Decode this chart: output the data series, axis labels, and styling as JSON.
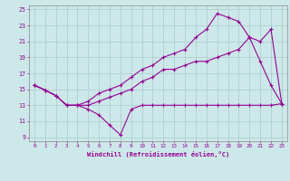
{
  "xlabel": "Windchill (Refroidissement éolien,°C)",
  "background_color": "#cce8e8",
  "line_color": "#990099",
  "grid_color": "#aacccc",
  "spine_color": "#888888",
  "xlim": [
    -0.5,
    23.5
  ],
  "ylim": [
    8.5,
    25.5
  ],
  "yticks": [
    9,
    11,
    13,
    15,
    17,
    19,
    21,
    23,
    25
  ],
  "xticks": [
    0,
    1,
    2,
    3,
    4,
    5,
    6,
    7,
    8,
    9,
    10,
    11,
    12,
    13,
    14,
    15,
    16,
    17,
    18,
    19,
    20,
    21,
    22,
    23
  ],
  "line1_x": [
    0,
    1,
    2,
    3,
    4,
    5,
    6,
    7,
    8,
    9,
    10,
    11,
    12,
    13,
    14,
    15,
    16,
    17,
    18,
    19,
    20,
    21,
    22,
    23
  ],
  "line1_y": [
    15.5,
    14.9,
    14.2,
    13.0,
    13.0,
    12.5,
    11.8,
    10.5,
    9.3,
    12.5,
    13.0,
    13.0,
    13.0,
    13.0,
    13.0,
    13.0,
    13.0,
    13.0,
    13.0,
    13.0,
    13.0,
    13.0,
    13.0,
    13.2
  ],
  "line2_x": [
    0,
    1,
    2,
    3,
    4,
    5,
    6,
    7,
    8,
    9,
    10,
    11,
    12,
    13,
    14,
    15,
    16,
    17,
    18,
    19,
    20,
    21,
    22,
    23
  ],
  "line2_y": [
    15.5,
    14.9,
    14.2,
    13.0,
    13.0,
    13.5,
    14.5,
    15.0,
    15.5,
    16.5,
    17.5,
    18.0,
    19.0,
    19.5,
    20.0,
    21.5,
    22.5,
    24.5,
    24.0,
    23.5,
    21.5,
    18.5,
    15.5,
    13.2
  ],
  "line3_x": [
    0,
    1,
    2,
    3,
    4,
    5,
    6,
    7,
    8,
    9,
    10,
    11,
    12,
    13,
    14,
    15,
    16,
    17,
    18,
    19,
    20,
    21,
    22,
    23
  ],
  "line3_y": [
    15.5,
    14.9,
    14.2,
    13.0,
    13.0,
    13.0,
    13.5,
    14.0,
    14.5,
    15.0,
    16.0,
    16.5,
    17.5,
    17.5,
    18.0,
    18.5,
    18.5,
    19.0,
    19.5,
    20.0,
    21.5,
    21.0,
    22.5,
    13.2
  ]
}
